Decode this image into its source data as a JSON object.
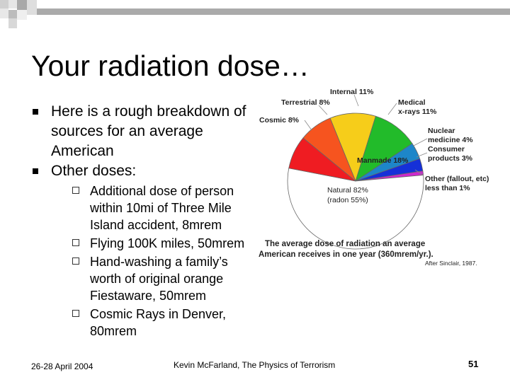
{
  "slide": {
    "title": "Your radiation dose…",
    "bullets": [
      "Here is a rough breakdown of sources for an average American",
      "Other doses:"
    ],
    "subbullets": [
      "Additional dose of person within 10mi of Three Mile Island accident, 8mrem",
      "Flying 100K miles, 50mrem",
      "Hand-washing a family’s worth of original orange Fiestaware, 50mrem",
      "Cosmic Rays in Denver, 80mrem"
    ],
    "footer": {
      "date": "26-28 April 2004",
      "center": "Kevin McFarland, The Physics of Terrorism",
      "page": "51"
    }
  },
  "chart_data": {
    "type": "pie",
    "labels": [
      {
        "line1": "Internal 11%",
        "line2": ""
      },
      {
        "line1": "Medical",
        "line2": "x-rays 11%"
      },
      {
        "line1": "Nuclear",
        "line2": "medicine 4%"
      },
      {
        "line1": "Consumer",
        "line2": "products 3%"
      },
      {
        "line1": "Other (fallout, etc)",
        "line2": "less than 1%"
      },
      {
        "line1": "Natural 82%",
        "line2": "(radon 55%)"
      },
      {
        "line1": "Manmade 18%",
        "line2": ""
      },
      {
        "line1": "Cosmic 8%",
        "line2": ""
      },
      {
        "line1": "Terrestrial 8%",
        "line2": ""
      }
    ],
    "slices": [
      {
        "label": "Internal",
        "value": 11,
        "color": "#f6cd1a"
      },
      {
        "label": "Medical x-rays",
        "value": 11,
        "color": "#22bb2a"
      },
      {
        "label": "Nuclear medicine",
        "value": 4,
        "color": "#1d86c9"
      },
      {
        "label": "Consumer products",
        "value": 3,
        "color": "#1530d8"
      },
      {
        "label": "Other (fallout, etc)",
        "value": 1,
        "color": "#cc2acc"
      },
      {
        "label": "Radon",
        "value": 55,
        "color": "#ffffff"
      },
      {
        "label": "Cosmic",
        "value": 8,
        "color": "#ef1c22"
      },
      {
        "label": "Terrestrial",
        "value": 8,
        "color": "#f6541f"
      }
    ],
    "caption_line1": "The average dose of radiation an average",
    "caption_line2": "American receives in one year  (360mrem/yr.).",
    "source": "After Sinclair, 1987."
  }
}
